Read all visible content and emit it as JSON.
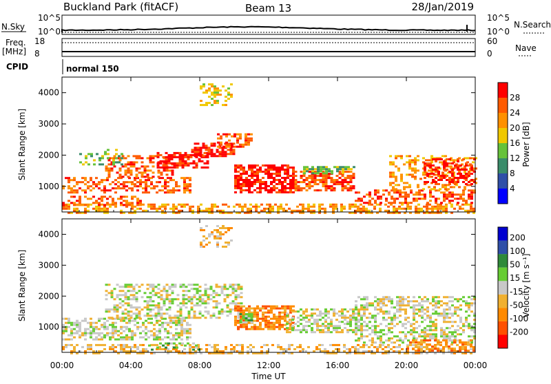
{
  "header": {
    "station": "Buckland Park (fitACF)",
    "beam": "Beam 13",
    "date": "28/Jan/2019"
  },
  "top_panels": {
    "nsky_label": "N.Sky",
    "nsky_ticks": [
      "10^5",
      "10^0"
    ],
    "nsearch_label": "N.Search",
    "nsearch_ticks": [
      "10^5",
      "10^0"
    ],
    "freq_label": "Freq.",
    "freq_unit": "[MHz]",
    "freq_ticks": [
      "18",
      "8"
    ],
    "nave_label": "Nave",
    "nave_ticks": [
      "60",
      "0"
    ],
    "cpid_label": "CPID",
    "cpid_value": "normal 150"
  },
  "chart_data": [
    {
      "type": "heatmap",
      "name": "power",
      "ylabel": "Slant Range [km]",
      "xlabel": "Time UT",
      "x_ticks": [
        "00:00",
        "04:00",
        "08:00",
        "12:00",
        "16:00",
        "20:00",
        "00:00"
      ],
      "x_hours": [
        0,
        4,
        8,
        12,
        16,
        20,
        24
      ],
      "y_ticks": [
        1000,
        2000,
        3000,
        4000
      ],
      "ylim": [
        180,
        4500
      ],
      "colorbar_label": "Power [dB]",
      "colorbar_ticks": [
        "28",
        "24",
        "20",
        "16",
        "12",
        "8",
        "4"
      ],
      "colorbar_colors": [
        "#0000ff",
        "#2f4fa8",
        "#3a8c6a",
        "#66c23a",
        "#f0c800",
        "#ff9000",
        "#ff5a00",
        "#ff0000"
      ],
      "regions": [
        {
          "x0": 0.0,
          "x1": 24.0,
          "y0": 180,
          "y1": 450,
          "c": 5,
          "d": 0.55
        },
        {
          "x0": 0.0,
          "x1": 4.5,
          "y0": 380,
          "y1": 700,
          "c": 6,
          "d": 0.45
        },
        {
          "x0": 0.0,
          "x1": 7.5,
          "y0": 780,
          "y1": 1300,
          "c": 6,
          "d": 0.5
        },
        {
          "x0": 2.5,
          "x1": 6.5,
          "y0": 1300,
          "y1": 2000,
          "c": 6,
          "d": 0.45
        },
        {
          "x0": 5.5,
          "x1": 8.5,
          "y0": 1600,
          "y1": 2100,
          "c": 7,
          "d": 0.6
        },
        {
          "x0": 7.5,
          "x1": 10.0,
          "y0": 2000,
          "y1": 2400,
          "c": 7,
          "d": 0.6
        },
        {
          "x0": 9.0,
          "x1": 11.0,
          "y0": 2300,
          "y1": 2700,
          "c": 6,
          "d": 0.55
        },
        {
          "x0": 8.0,
          "x1": 9.8,
          "y0": 3600,
          "y1": 4300,
          "c": 4,
          "d": 0.35
        },
        {
          "x0": 10.0,
          "x1": 13.5,
          "y0": 800,
          "y1": 1700,
          "c": 7,
          "d": 0.75
        },
        {
          "x0": 13.5,
          "x1": 17.0,
          "y0": 900,
          "y1": 1500,
          "c": 6,
          "d": 0.6
        },
        {
          "x0": 14.0,
          "x1": 17.0,
          "y0": 1400,
          "y1": 1650,
          "c": 3,
          "d": 0.55
        },
        {
          "x0": 17.0,
          "x1": 24.0,
          "y0": 450,
          "y1": 900,
          "c": 6,
          "d": 0.5
        },
        {
          "x0": 19.0,
          "x1": 24.0,
          "y0": 900,
          "y1": 2000,
          "c": 5,
          "d": 0.4
        },
        {
          "x0": 21.0,
          "x1": 24.0,
          "y0": 1100,
          "y1": 1900,
          "c": 7,
          "d": 0.45
        },
        {
          "x0": 1.0,
          "x1": 3.5,
          "y0": 1700,
          "y1": 2200,
          "c": 3,
          "d": 0.3
        }
      ]
    },
    {
      "type": "heatmap",
      "name": "velocity",
      "ylabel": "Slant Range [km]",
      "xlabel": "Time UT",
      "x_ticks": [
        "00:00",
        "04:00",
        "08:00",
        "12:00",
        "16:00",
        "20:00",
        "00:00"
      ],
      "x_hours": [
        0,
        4,
        8,
        12,
        16,
        20,
        24
      ],
      "y_ticks": [
        1000,
        2000,
        3000,
        4000
      ],
      "ylim": [
        180,
        4500
      ],
      "colorbar_label": "Velocity [m s⁻¹]",
      "colorbar_ticks": [
        "200",
        "100",
        "50",
        "15",
        "-15",
        "-50",
        "-100",
        "-200"
      ],
      "colorbar_colors": [
        "#ff0000",
        "#ff5000",
        "#ff8a00",
        "#f0b030",
        "#c8c8c8",
        "#66cc33",
        "#2f8a3a",
        "#2f4fa8",
        "#0000d0"
      ],
      "regions": [
        {
          "x0": 0.0,
          "x1": 24.0,
          "y0": 180,
          "y1": 450,
          "c": 3,
          "d": 0.45
        },
        {
          "x0": 0.0,
          "x1": 7.5,
          "y0": 600,
          "y1": 1300,
          "c": 4,
          "d": 0.55
        },
        {
          "x0": 2.5,
          "x1": 10.5,
          "y0": 1300,
          "y1": 2400,
          "c": 4,
          "d": 0.45
        },
        {
          "x0": 8.0,
          "x1": 9.8,
          "y0": 3600,
          "y1": 4300,
          "c": 3,
          "d": 0.35
        },
        {
          "x0": 10.0,
          "x1": 13.5,
          "y0": 900,
          "y1": 1700,
          "c": 2,
          "d": 0.75
        },
        {
          "x0": 10.3,
          "x1": 11.0,
          "y0": 1150,
          "y1": 1450,
          "c": 5,
          "d": 0.8
        },
        {
          "x0": 13.0,
          "x1": 17.5,
          "y0": 800,
          "y1": 1600,
          "c": 4,
          "d": 0.55
        },
        {
          "x0": 17.0,
          "x1": 24.0,
          "y0": 500,
          "y1": 2000,
          "c": 4,
          "d": 0.45
        },
        {
          "x0": 20.0,
          "x1": 24.0,
          "y0": 250,
          "y1": 600,
          "c": 2,
          "d": 0.5
        },
        {
          "x0": 5.0,
          "x1": 8.0,
          "y0": 250,
          "y1": 500,
          "c": 5,
          "d": 0.3
        }
      ]
    }
  ]
}
